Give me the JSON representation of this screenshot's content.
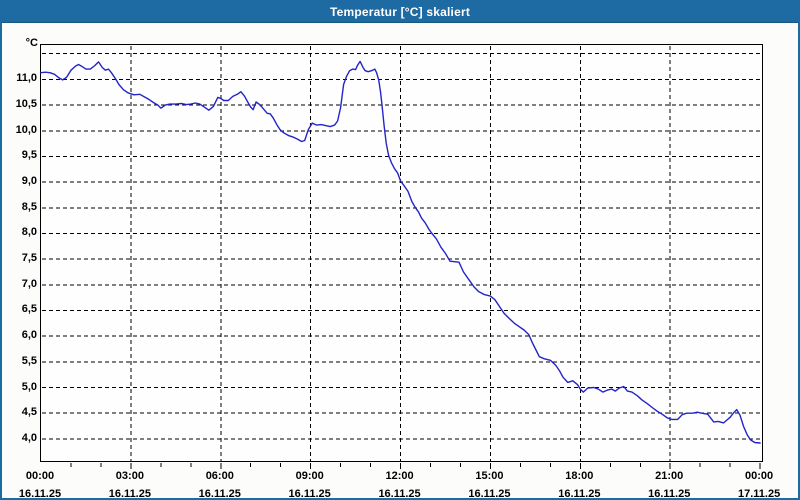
{
  "window": {
    "title": "Temperatur [°C] skaliert"
  },
  "colors": {
    "titlebar_bg": "#1d6ba2",
    "window_border": "#1d6ba2",
    "plot_bg": "#fdfefd",
    "grid": "#000000",
    "line": "#2424c8",
    "text": "#000000",
    "title_text": "#ffffff"
  },
  "chart_data": {
    "type": "line",
    "title": "Temperatur [°C] skaliert",
    "y_unit": "°C",
    "grid": "dashed",
    "legend": "none",
    "x_axis": {
      "xlim_hours": [
        0,
        24.13
      ],
      "minor_tick_interval_hours": 1,
      "major_tick_interval_hours": 3,
      "major_ticks": [
        {
          "hour": 0,
          "time": "00:00",
          "date": "16.11.25"
        },
        {
          "hour": 3,
          "time": "03:00",
          "date": "16.11.25"
        },
        {
          "hour": 6,
          "time": "06:00",
          "date": "16.11.25"
        },
        {
          "hour": 9,
          "time": "09:00",
          "date": "16.11.25"
        },
        {
          "hour": 12,
          "time": "12:00",
          "date": "16.11.25"
        },
        {
          "hour": 15,
          "time": "15:00",
          "date": "16.11.25"
        },
        {
          "hour": 18,
          "time": "18:00",
          "date": "16.11.25"
        },
        {
          "hour": 21,
          "time": "21:00",
          "date": "16.11.25"
        },
        {
          "hour": 24,
          "time": "00:00",
          "date": "17.11.25"
        }
      ],
      "gridline_hours": [
        3,
        6,
        9,
        12,
        15,
        18,
        21
      ]
    },
    "y_axis": {
      "ylim": [
        3.53,
        11.67
      ],
      "grid_values": [
        11.5,
        11.0,
        10.5,
        10.0,
        9.5,
        9.0,
        8.5,
        8.0,
        7.5,
        7.0,
        6.5,
        6.0,
        5.5,
        5.0,
        4.5,
        4.0
      ],
      "ticks": [
        {
          "value": 11.0,
          "label": "11,0"
        },
        {
          "value": 10.5,
          "label": "10,5"
        },
        {
          "value": 10.0,
          "label": "10,0"
        },
        {
          "value": 9.5,
          "label": "9,5"
        },
        {
          "value": 9.0,
          "label": "9,0"
        },
        {
          "value": 8.5,
          "label": "8,5"
        },
        {
          "value": 8.0,
          "label": "8,0"
        },
        {
          "value": 7.5,
          "label": "7,5"
        },
        {
          "value": 7.0,
          "label": "7,0"
        },
        {
          "value": 6.5,
          "label": "6,5"
        },
        {
          "value": 6.0,
          "label": "6,0"
        },
        {
          "value": 5.5,
          "label": "5,5"
        },
        {
          "value": 5.0,
          "label": "5,0"
        },
        {
          "value": 4.5,
          "label": "4,5"
        },
        {
          "value": 4.0,
          "label": "4,0"
        }
      ]
    },
    "series": [
      {
        "name": "Temperatur",
        "color": "#2424c8",
        "points": [
          [
            0.0,
            11.13
          ],
          [
            0.15,
            11.14
          ],
          [
            0.3,
            11.13
          ],
          [
            0.45,
            11.1
          ],
          [
            0.6,
            11.03
          ],
          [
            0.72,
            10.99
          ],
          [
            0.85,
            11.04
          ],
          [
            1.0,
            11.18
          ],
          [
            1.15,
            11.26
          ],
          [
            1.25,
            11.29
          ],
          [
            1.35,
            11.26
          ],
          [
            1.5,
            11.2
          ],
          [
            1.65,
            11.2
          ],
          [
            1.8,
            11.27
          ],
          [
            1.92,
            11.34
          ],
          [
            2.05,
            11.23
          ],
          [
            2.15,
            11.18
          ],
          [
            2.25,
            11.2
          ],
          [
            2.35,
            11.13
          ],
          [
            2.5,
            11.0
          ],
          [
            2.6,
            10.9
          ],
          [
            2.75,
            10.8
          ],
          [
            2.9,
            10.74
          ],
          [
            3.1,
            10.7
          ],
          [
            3.3,
            10.71
          ],
          [
            3.45,
            10.66
          ],
          [
            3.6,
            10.61
          ],
          [
            3.75,
            10.55
          ],
          [
            3.9,
            10.5
          ],
          [
            4.0,
            10.44
          ],
          [
            4.15,
            10.5
          ],
          [
            4.3,
            10.52
          ],
          [
            4.5,
            10.52
          ],
          [
            4.7,
            10.53
          ],
          [
            4.85,
            10.51
          ],
          [
            5.0,
            10.52
          ],
          [
            5.15,
            10.54
          ],
          [
            5.3,
            10.52
          ],
          [
            5.45,
            10.46
          ],
          [
            5.6,
            10.4
          ],
          [
            5.75,
            10.47
          ],
          [
            5.9,
            10.65
          ],
          [
            6.0,
            10.63
          ],
          [
            6.1,
            10.59
          ],
          [
            6.25,
            10.59
          ],
          [
            6.4,
            10.67
          ],
          [
            6.55,
            10.71
          ],
          [
            6.67,
            10.76
          ],
          [
            6.8,
            10.67
          ],
          [
            6.9,
            10.56
          ],
          [
            7.0,
            10.46
          ],
          [
            7.08,
            10.41
          ],
          [
            7.18,
            10.56
          ],
          [
            7.3,
            10.51
          ],
          [
            7.42,
            10.43
          ],
          [
            7.55,
            10.34
          ],
          [
            7.65,
            10.33
          ],
          [
            7.75,
            10.25
          ],
          [
            7.87,
            10.12
          ],
          [
            7.98,
            10.02
          ],
          [
            8.1,
            9.96
          ],
          [
            8.25,
            9.91
          ],
          [
            8.4,
            9.88
          ],
          [
            8.55,
            9.84
          ],
          [
            8.7,
            9.79
          ],
          [
            8.8,
            9.81
          ],
          [
            8.92,
            10.02
          ],
          [
            9.05,
            10.15
          ],
          [
            9.2,
            10.11
          ],
          [
            9.35,
            10.12
          ],
          [
            9.5,
            10.1
          ],
          [
            9.65,
            10.08
          ],
          [
            9.8,
            10.11
          ],
          [
            9.9,
            10.19
          ],
          [
            10.0,
            10.45
          ],
          [
            10.1,
            10.9
          ],
          [
            10.2,
            11.06
          ],
          [
            10.3,
            11.17
          ],
          [
            10.4,
            11.2
          ],
          [
            10.5,
            11.19
          ],
          [
            10.56,
            11.27
          ],
          [
            10.65,
            11.35
          ],
          [
            10.75,
            11.23
          ],
          [
            10.82,
            11.17
          ],
          [
            10.92,
            11.15
          ],
          [
            11.03,
            11.17
          ],
          [
            11.14,
            11.2
          ],
          [
            11.2,
            11.13
          ],
          [
            11.27,
            10.99
          ],
          [
            11.33,
            10.76
          ],
          [
            11.38,
            10.5
          ],
          [
            11.45,
            10.1
          ],
          [
            11.52,
            9.76
          ],
          [
            11.6,
            9.52
          ],
          [
            11.7,
            9.37
          ],
          [
            11.8,
            9.26
          ],
          [
            11.9,
            9.18
          ],
          [
            12.0,
            9.02
          ],
          [
            12.12,
            8.93
          ],
          [
            12.25,
            8.82
          ],
          [
            12.38,
            8.62
          ],
          [
            12.5,
            8.5
          ],
          [
            12.6,
            8.42
          ],
          [
            12.7,
            8.3
          ],
          [
            12.82,
            8.21
          ],
          [
            12.95,
            8.08
          ],
          [
            13.05,
            8.0
          ],
          [
            13.2,
            7.89
          ],
          [
            13.35,
            7.73
          ],
          [
            13.5,
            7.61
          ],
          [
            13.65,
            7.46
          ],
          [
            13.8,
            7.45
          ],
          [
            13.95,
            7.44
          ],
          [
            14.1,
            7.25
          ],
          [
            14.28,
            7.1
          ],
          [
            14.45,
            6.96
          ],
          [
            14.6,
            6.87
          ],
          [
            14.8,
            6.81
          ],
          [
            15.0,
            6.78
          ],
          [
            15.15,
            6.71
          ],
          [
            15.3,
            6.58
          ],
          [
            15.45,
            6.45
          ],
          [
            15.62,
            6.35
          ],
          [
            15.8,
            6.25
          ],
          [
            15.95,
            6.19
          ],
          [
            16.12,
            6.12
          ],
          [
            16.28,
            6.03
          ],
          [
            16.4,
            5.87
          ],
          [
            16.52,
            5.73
          ],
          [
            16.63,
            5.6
          ],
          [
            16.8,
            5.56
          ],
          [
            17.0,
            5.53
          ],
          [
            17.18,
            5.43
          ],
          [
            17.3,
            5.33
          ],
          [
            17.42,
            5.2
          ],
          [
            17.58,
            5.1
          ],
          [
            17.75,
            5.13
          ],
          [
            17.9,
            5.06
          ],
          [
            18.0,
            4.97
          ],
          [
            18.1,
            4.91
          ],
          [
            18.25,
            4.99
          ],
          [
            18.45,
            5.0
          ],
          [
            18.6,
            4.97
          ],
          [
            18.75,
            4.91
          ],
          [
            18.9,
            4.95
          ],
          [
            19.05,
            4.97
          ],
          [
            19.17,
            4.93
          ],
          [
            19.3,
            4.99
          ],
          [
            19.45,
            5.02
          ],
          [
            19.57,
            4.93
          ],
          [
            19.72,
            4.91
          ],
          [
            19.9,
            4.84
          ],
          [
            20.05,
            4.76
          ],
          [
            20.25,
            4.68
          ],
          [
            20.4,
            4.61
          ],
          [
            20.56,
            4.54
          ],
          [
            20.73,
            4.48
          ],
          [
            20.9,
            4.41
          ],
          [
            21.05,
            4.38
          ],
          [
            21.25,
            4.38
          ],
          [
            21.4,
            4.47
          ],
          [
            21.55,
            4.5
          ],
          [
            21.75,
            4.5
          ],
          [
            21.9,
            4.52
          ],
          [
            22.05,
            4.5
          ],
          [
            22.25,
            4.48
          ],
          [
            22.45,
            4.33
          ],
          [
            22.6,
            4.34
          ],
          [
            22.78,
            4.31
          ],
          [
            22.9,
            4.37
          ],
          [
            23.0,
            4.42
          ],
          [
            23.12,
            4.51
          ],
          [
            23.22,
            4.57
          ],
          [
            23.33,
            4.46
          ],
          [
            23.45,
            4.24
          ],
          [
            23.57,
            4.08
          ],
          [
            23.68,
            3.98
          ],
          [
            23.82,
            3.93
          ],
          [
            24.0,
            3.92
          ]
        ]
      }
    ]
  }
}
